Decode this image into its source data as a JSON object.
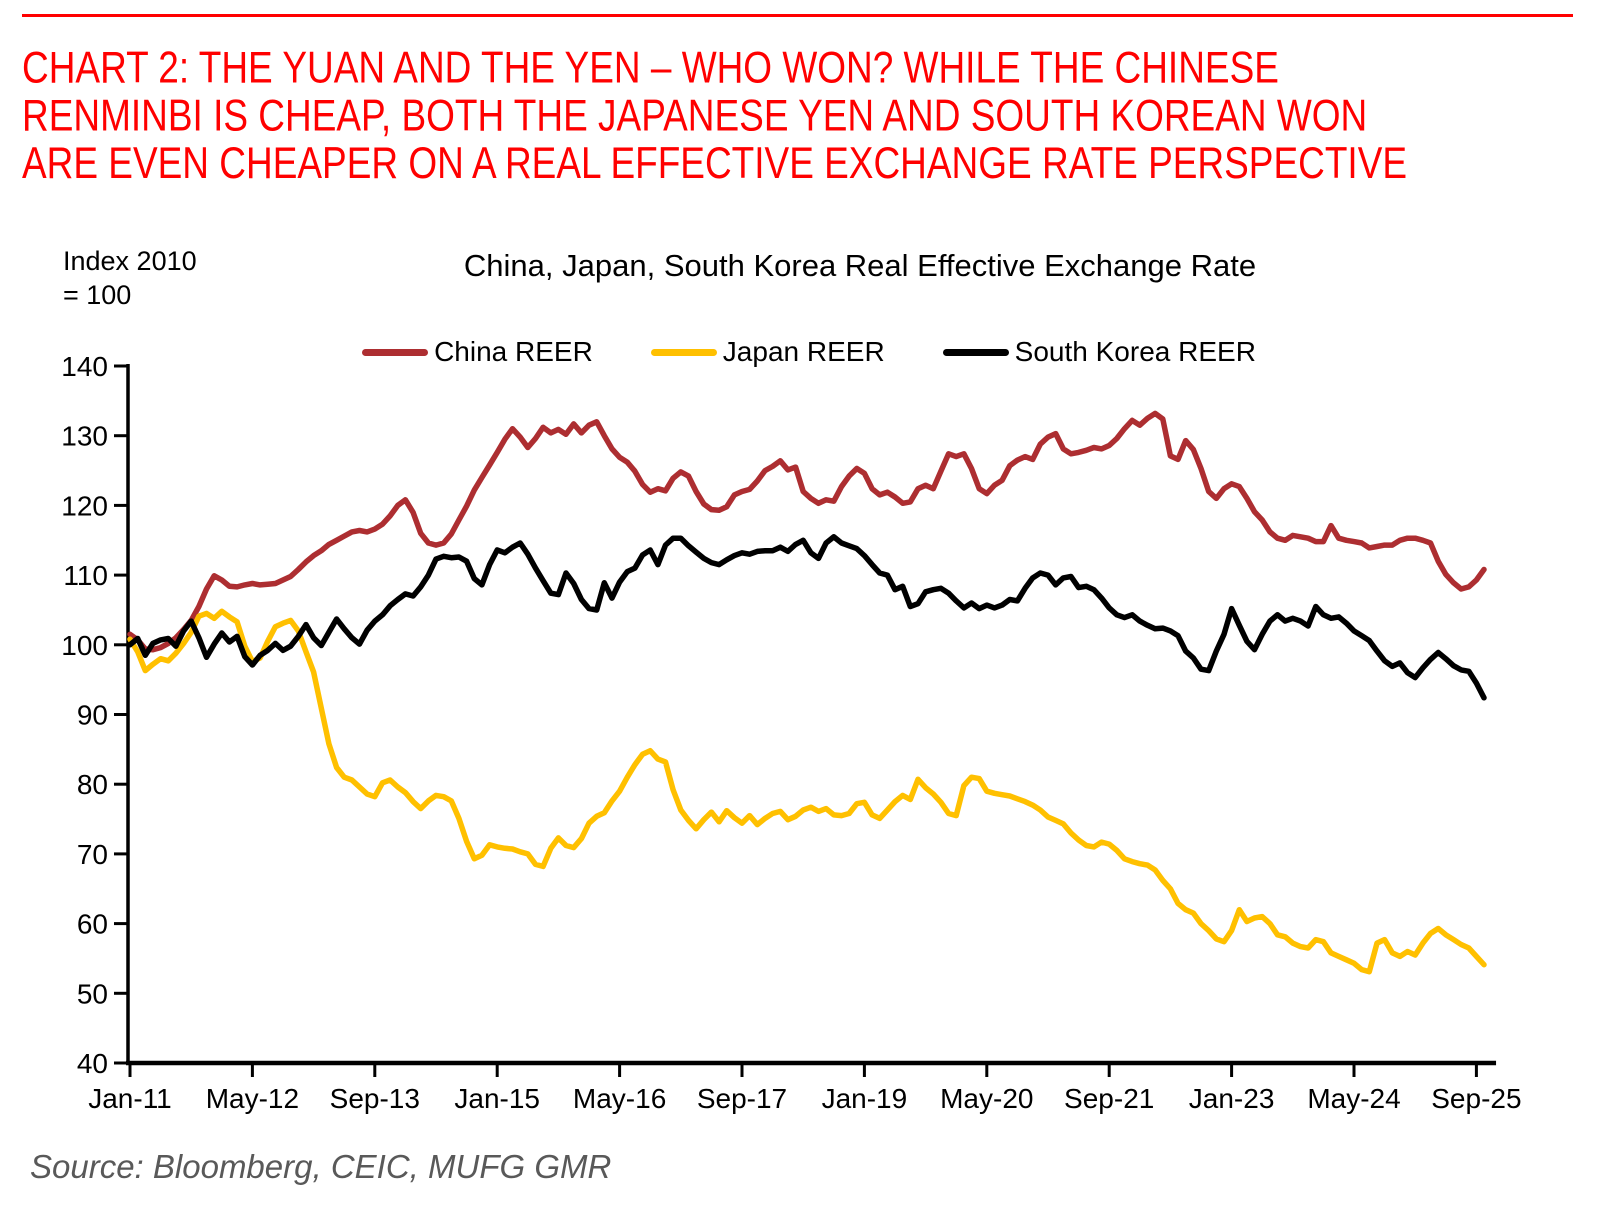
{
  "header": {
    "rule_color": "#FF0000",
    "title_color": "#FF0000",
    "title_lines": [
      "CHART 2: THE YUAN AND THE YEN – WHO WON? WHILE THE CHINESE",
      "RENMINBI IS CHEAP, BOTH THE JAPANESE YEN AND SOUTH KOREAN WON",
      "ARE EVEN CHEAPER ON A REAL EFFECTIVE EXCHANGE RATE PERSPECTIVE"
    ]
  },
  "chart": {
    "title": "China, Japan, South Korea Real Effective Exchange Rate",
    "y_axis_label_line1": "Index 2010",
    "y_axis_label_line2": "= 100",
    "axis_color": "#000000",
    "tick_font_color": "#000000"
  },
  "chart_data": {
    "type": "line",
    "title": "China, Japan, South Korea Real Effective Exchange Rate",
    "ylabel": "Index 2010 = 100",
    "ylim": [
      40,
      140
    ],
    "y_ticks": [
      140,
      130,
      120,
      110,
      100,
      90,
      80,
      70,
      60,
      50,
      40
    ],
    "x_start": "Jan-2011",
    "x_frequency": "monthly",
    "x_tick_months": [
      0,
      16,
      32,
      48,
      64,
      80,
      96,
      112,
      128,
      144,
      160,
      176
    ],
    "x_tick_labels": [
      "Jan-11",
      "May-12",
      "Sep-13",
      "Jan-15",
      "May-16",
      "Sep-17",
      "Jan-19",
      "May-20",
      "Sep-21",
      "Jan-23",
      "May-24",
      "Sep-25"
    ],
    "grid": false,
    "legend_position": "top-center",
    "series": [
      {
        "name": "China REER",
        "color": "#AD2E31",
        "values": [
          101.5,
          100.7,
          99.4,
          99.3,
          99.6,
          100.2,
          101.0,
          102.2,
          103.5,
          105.5,
          108.0,
          109.9,
          109.3,
          108.4,
          108.3,
          108.6,
          108.8,
          108.6,
          108.7,
          108.8,
          109.3,
          109.8,
          110.8,
          111.9,
          112.8,
          113.5,
          114.4,
          115.0,
          115.6,
          116.2,
          116.4,
          116.2,
          116.6,
          117.3,
          118.5,
          120.0,
          120.8,
          119.0,
          116.0,
          114.6,
          114.3,
          114.6,
          115.9,
          117.9,
          119.9,
          122.2,
          124.0,
          125.8,
          127.6,
          129.5,
          131.0,
          129.8,
          128.3,
          129.6,
          131.2,
          130.4,
          130.9,
          130.2,
          131.7,
          130.4,
          131.5,
          132.0,
          130.0,
          128.1,
          126.9,
          126.2,
          124.9,
          123.0,
          121.9,
          122.4,
          122.1,
          123.9,
          124.8,
          124.2,
          122.0,
          120.2,
          119.4,
          119.3,
          119.8,
          121.5,
          122.0,
          122.3,
          123.5,
          125.0,
          125.6,
          126.4,
          125.1,
          125.5,
          122.0,
          121.0,
          120.3,
          120.8,
          120.6,
          122.7,
          124.2,
          125.3,
          124.6,
          122.4,
          121.5,
          121.9,
          121.2,
          120.3,
          120.5,
          122.4,
          122.9,
          122.4,
          124.9,
          127.4,
          127.0,
          127.4,
          125.3,
          122.4,
          121.7,
          122.9,
          123.6,
          125.7,
          126.5,
          127.0,
          126.6,
          128.8,
          129.8,
          130.3,
          128.1,
          127.4,
          127.6,
          127.9,
          128.3,
          128.1,
          128.6,
          129.6,
          131.0,
          132.2,
          131.5,
          132.5,
          133.2,
          132.4,
          127.1,
          126.6,
          129.3,
          128.0,
          125.3,
          122.0,
          121.0,
          122.4,
          123.1,
          122.7,
          121.0,
          119.1,
          117.9,
          116.2,
          115.3,
          115.0,
          115.7,
          115.5,
          115.3,
          114.8,
          114.8,
          117.1,
          115.3,
          115.0,
          114.8,
          114.6,
          113.9,
          114.1,
          114.3,
          114.3,
          115.0,
          115.3,
          115.3,
          115.0,
          114.6,
          112.0,
          110.1,
          108.9,
          108.0,
          108.3,
          109.3,
          110.8
        ]
      },
      {
        "name": "Japan REER",
        "color": "#FFC000",
        "values": [
          100.8,
          99.0,
          96.3,
          97.2,
          98.0,
          97.7,
          98.8,
          100.2,
          101.8,
          104.1,
          104.5,
          103.8,
          104.8,
          104.0,
          103.3,
          99.8,
          97.6,
          98.1,
          100.5,
          102.6,
          103.1,
          103.5,
          102.0,
          99.0,
          96.1,
          90.9,
          85.8,
          82.4,
          81.0,
          80.6,
          79.6,
          78.6,
          78.2,
          80.2,
          80.6,
          79.6,
          78.8,
          77.5,
          76.5,
          77.6,
          78.4,
          78.2,
          77.6,
          75.1,
          71.8,
          69.3,
          69.8,
          71.3,
          71.0,
          70.8,
          70.7,
          70.3,
          70.0,
          68.5,
          68.2,
          70.8,
          72.3,
          71.2,
          70.9,
          72.2,
          74.4,
          75.4,
          75.9,
          77.6,
          79.0,
          81.0,
          82.8,
          84.3,
          84.8,
          83.6,
          83.2,
          79.2,
          76.3,
          74.8,
          73.6,
          74.9,
          76.0,
          74.6,
          76.2,
          75.2,
          74.4,
          75.5,
          74.2,
          75.1,
          75.8,
          76.1,
          74.9,
          75.4,
          76.3,
          76.7,
          76.1,
          76.5,
          75.6,
          75.5,
          75.8,
          77.2,
          77.4,
          75.6,
          75.1,
          76.3,
          77.5,
          78.4,
          77.8,
          80.7,
          79.5,
          78.6,
          77.4,
          75.8,
          75.5,
          79.8,
          81.0,
          80.8,
          79.0,
          78.7,
          78.5,
          78.3,
          77.9,
          77.5,
          77.0,
          76.3,
          75.3,
          74.8,
          74.3,
          73.0,
          72.0,
          71.2,
          71.0,
          71.7,
          71.4,
          70.5,
          69.3,
          68.9,
          68.6,
          68.4,
          67.7,
          66.2,
          65.0,
          62.9,
          62.0,
          61.5,
          60.0,
          59.0,
          57.8,
          57.4,
          59.0,
          62.0,
          60.3,
          60.8,
          61.0,
          60.0,
          58.4,
          58.1,
          57.2,
          56.7,
          56.5,
          57.7,
          57.4,
          55.8,
          55.3,
          54.8,
          54.3,
          53.4,
          53.1,
          57.2,
          57.7,
          55.8,
          55.3,
          56.0,
          55.5,
          57.2,
          58.6,
          59.3,
          58.4,
          57.7,
          57.0,
          56.5,
          55.3,
          54.1
        ]
      },
      {
        "name": "South Korea REER",
        "color": "#000000",
        "values": [
          100.0,
          100.9,
          98.5,
          100.2,
          100.7,
          100.9,
          99.8,
          102.0,
          103.4,
          101.0,
          98.2,
          100.1,
          101.7,
          100.4,
          101.2,
          98.3,
          97.1,
          98.5,
          99.2,
          100.2,
          99.2,
          99.8,
          101.2,
          102.9,
          101.0,
          99.9,
          101.8,
          103.7,
          102.3,
          101.0,
          100.1,
          102.1,
          103.4,
          104.3,
          105.6,
          106.5,
          107.3,
          107.0,
          108.3,
          110.0,
          112.3,
          112.7,
          112.5,
          112.6,
          112.0,
          109.5,
          108.6,
          111.5,
          113.6,
          113.2,
          114.0,
          114.6,
          113.0,
          111.0,
          109.2,
          107.4,
          107.2,
          110.3,
          108.8,
          106.5,
          105.2,
          105.0,
          108.9,
          106.7,
          109.0,
          110.5,
          111.0,
          112.9,
          113.6,
          111.5,
          114.3,
          115.3,
          115.3,
          114.2,
          113.3,
          112.4,
          111.8,
          111.5,
          112.2,
          112.8,
          113.2,
          113.0,
          113.4,
          113.5,
          113.5,
          114.0,
          113.4,
          114.4,
          115.0,
          113.2,
          112.4,
          114.6,
          115.5,
          114.6,
          114.2,
          113.8,
          112.8,
          111.5,
          110.3,
          110.0,
          107.9,
          108.4,
          105.5,
          105.9,
          107.6,
          107.9,
          108.1,
          107.4,
          106.3,
          105.3,
          106.0,
          105.2,
          105.7,
          105.3,
          105.7,
          106.5,
          106.3,
          108.1,
          109.6,
          110.3,
          110.0,
          108.6,
          109.6,
          109.8,
          108.2,
          108.4,
          107.9,
          106.7,
          105.3,
          104.3,
          103.9,
          104.3,
          103.4,
          102.8,
          102.3,
          102.4,
          102.0,
          101.3,
          99.1,
          98.1,
          96.5,
          96.3,
          99.1,
          101.5,
          105.2,
          102.8,
          100.5,
          99.3,
          101.5,
          103.4,
          104.3,
          103.4,
          103.8,
          103.4,
          102.7,
          105.5,
          104.3,
          103.8,
          104.0,
          103.1,
          102.0,
          101.3,
          100.6,
          99.1,
          97.7,
          96.9,
          97.4,
          96.0,
          95.3,
          96.7,
          97.9,
          98.9,
          98.0,
          97.0,
          96.4,
          96.2,
          94.5,
          92.4
        ]
      }
    ]
  },
  "source": {
    "text": "Source: Bloomberg, CEIC, MUFG GMR"
  }
}
